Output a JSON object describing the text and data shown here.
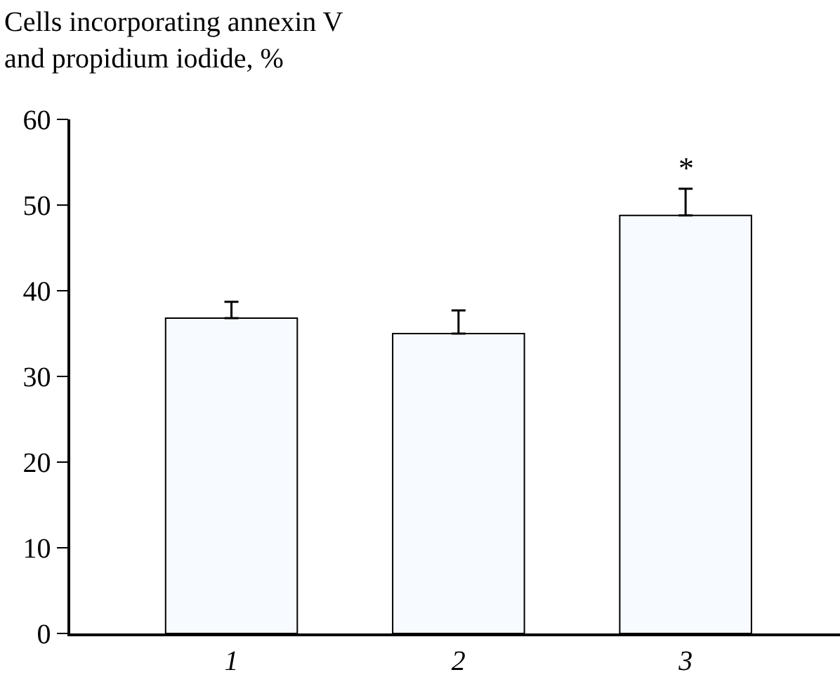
{
  "chart_data": {
    "type": "bar",
    "title": "Cells incorporating annexin V\nand propidium iodide, %",
    "categories": [
      "1",
      "2",
      "3"
    ],
    "values": [
      36.8,
      35.0,
      48.8
    ],
    "errors": [
      [
        36.8,
        38.7
      ],
      [
        35.0,
        37.7
      ],
      [
        48.8,
        51.9
      ]
    ],
    "color": "#f7fafe",
    "ylim": [
      0,
      60
    ],
    "yticks": [
      0,
      10,
      20,
      30,
      40,
      50,
      60
    ],
    "annotations": [
      {
        "text": "*",
        "x": "3",
        "y": 51.9
      }
    ]
  }
}
